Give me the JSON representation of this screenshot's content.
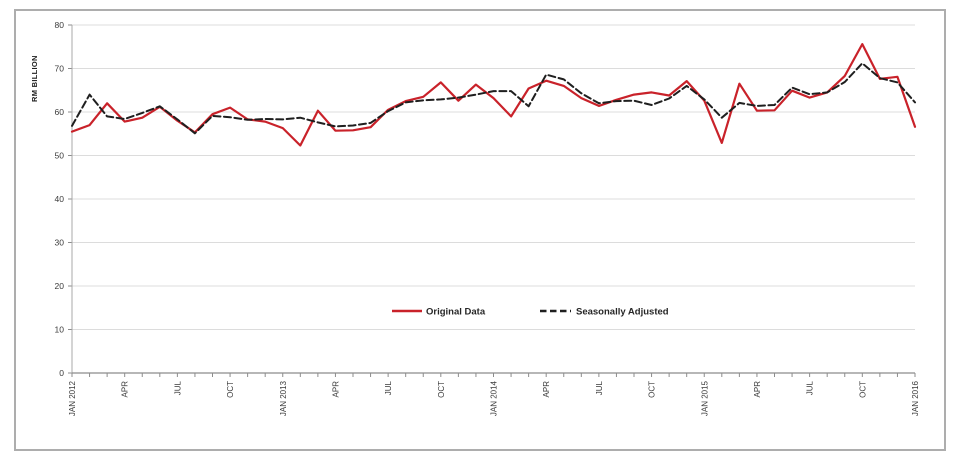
{
  "figure": {
    "y_axis_title": "RM BILLION",
    "legend": {
      "original_label": "Original Data",
      "seasonal_label": "Seasonally Adjusted"
    },
    "colors": {
      "original_line": "#c9222a",
      "seasonal_line": "#1f1f1f",
      "gridline": "#dcdcdc",
      "axis": "#8c8c8c",
      "frame_border": "#adadad"
    }
  },
  "chart_data": {
    "type": "line",
    "title": "",
    "xlabel": "",
    "ylabel": "RM BILLION",
    "ylim": [
      0,
      80
    ],
    "y_ticks": [
      0,
      10,
      20,
      30,
      40,
      50,
      60,
      70,
      80
    ],
    "grid": "horizontal",
    "legend_position": "inside-bottom-center",
    "x_tick_label_every_n_months": 3,
    "x_tick_labels": [
      "JAN 2012",
      "APR",
      "JUL",
      "OCT",
      "JAN 2013",
      "APR",
      "JUL",
      "OCT",
      "JAN 2014",
      "APR",
      "JUL",
      "OCT",
      "JAN 2015",
      "APR",
      "JUL",
      "OCT",
      "JAN 2016"
    ],
    "months": [
      "Jan 2012",
      "Feb 2012",
      "Mar 2012",
      "Apr 2012",
      "May 2012",
      "Jun 2012",
      "Jul 2012",
      "Aug 2012",
      "Sep 2012",
      "Oct 2012",
      "Nov 2012",
      "Dec 2012",
      "Jan 2013",
      "Feb 2013",
      "Mar 2013",
      "Apr 2013",
      "May 2013",
      "Jun 2013",
      "Jul 2013",
      "Aug 2013",
      "Sep 2013",
      "Oct 2013",
      "Nov 2013",
      "Dec 2013",
      "Jan 2014",
      "Feb 2014",
      "Mar 2014",
      "Apr 2014",
      "May 2014",
      "Jun 2014",
      "Jul 2014",
      "Aug 2014",
      "Sep 2014",
      "Oct 2014",
      "Nov 2014",
      "Dec 2014",
      "Jan 2015",
      "Feb 2015",
      "Mar 2015",
      "Apr 2015",
      "May 2015",
      "Jun 2015",
      "Jul 2015",
      "Aug 2015",
      "Sep 2015",
      "Oct 2015",
      "Nov 2015",
      "Dec 2015",
      "Jan 2016"
    ],
    "series": [
      {
        "name": "Original Data",
        "style": "solid",
        "color": "#c9222a",
        "values": [
          55.5,
          57.0,
          62.0,
          57.8,
          58.7,
          61.2,
          58.0,
          55.3,
          59.5,
          61.0,
          58.3,
          57.8,
          56.3,
          52.3,
          60.3,
          55.7,
          55.8,
          56.5,
          60.5,
          62.5,
          63.5,
          66.8,
          62.6,
          66.3,
          63.2,
          59.0,
          65.4,
          67.2,
          66.0,
          63.2,
          61.4,
          62.8,
          64.0,
          64.5,
          63.8,
          67.1,
          62.6,
          52.9,
          66.5,
          60.3,
          60.4,
          64.9,
          63.3,
          64.5,
          68.3,
          75.6,
          67.6,
          68.1,
          56.6
        ]
      },
      {
        "name": "Seasonally Adjusted",
        "style": "dashed",
        "color": "#1f1f1f",
        "values": [
          56.8,
          64.0,
          59.0,
          58.4,
          59.8,
          61.3,
          58.3,
          55.1,
          59.1,
          58.8,
          58.2,
          58.4,
          58.3,
          58.7,
          57.6,
          56.7,
          56.9,
          57.5,
          60.2,
          62.2,
          62.7,
          62.9,
          63.3,
          64.0,
          64.8,
          64.8,
          61.3,
          68.6,
          67.5,
          64.3,
          62.0,
          62.5,
          62.6,
          61.6,
          63.1,
          66.0,
          62.9,
          58.7,
          62.1,
          61.4,
          61.6,
          65.6,
          64.1,
          64.5,
          66.9,
          71.2,
          67.8,
          66.8,
          62.2
        ]
      }
    ]
  }
}
